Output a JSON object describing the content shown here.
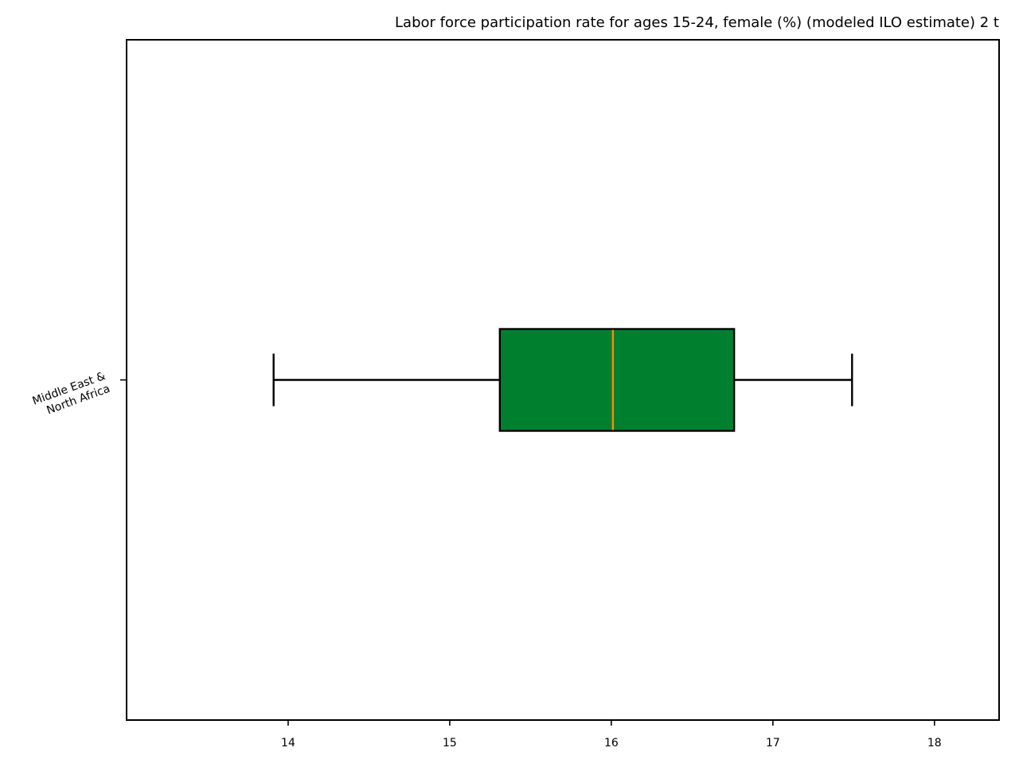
{
  "chart_data": {
    "type": "boxplot",
    "orientation": "horizontal",
    "title": "Labor force participation rate for ages 15-24, female (%) (modeled ILO estimate) 2 t",
    "xlabel": "",
    "ylabel": "",
    "xlim": [
      13.0,
      18.4
    ],
    "xticks": [
      14,
      15,
      16,
      17,
      18
    ],
    "xtick_labels": [
      "14",
      "15",
      "16",
      "17",
      "18"
    ],
    "grid": false,
    "series": [
      {
        "category_lines": [
          "Middle East &",
          "North Africa"
        ],
        "whisker_low": 13.91,
        "q1": 15.31,
        "median": 16.01,
        "q3": 16.76,
        "whisker_high": 17.49
      }
    ],
    "colors": {
      "box_fill": "#00802f",
      "median_line": "#ff8c00",
      "outline": "#000000"
    }
  }
}
